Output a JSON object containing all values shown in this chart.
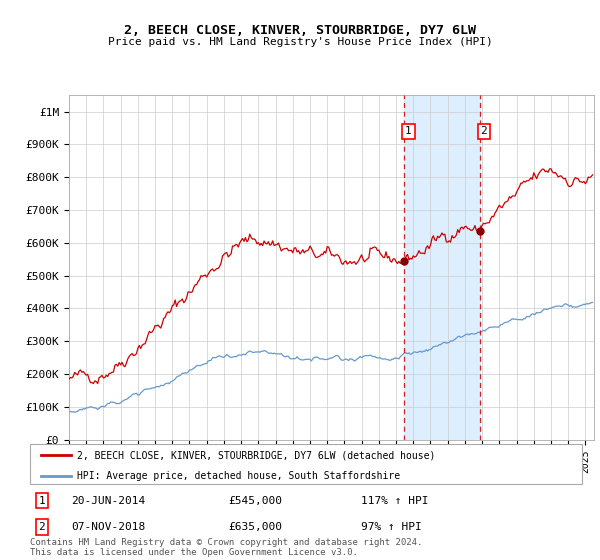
{
  "title": "2, BEECH CLOSE, KINVER, STOURBRIDGE, DY7 6LW",
  "subtitle": "Price paid vs. HM Land Registry's House Price Index (HPI)",
  "ylabel_ticks": [
    "£0",
    "£100K",
    "£200K",
    "£300K",
    "£400K",
    "£500K",
    "£600K",
    "£700K",
    "£800K",
    "£900K",
    "£1M"
  ],
  "ytick_values": [
    0,
    100000,
    200000,
    300000,
    400000,
    500000,
    600000,
    700000,
    800000,
    900000,
    1000000
  ],
  "ylim": [
    0,
    1050000
  ],
  "year_start": 1995,
  "year_end": 2025,
  "transaction1": {
    "date_num": 2014.47,
    "price": 545000,
    "label": "1",
    "date_str": "20-JUN-2014",
    "pct": "117%"
  },
  "transaction2": {
    "date_num": 2018.85,
    "price": 635000,
    "label": "2",
    "date_str": "07-NOV-2018",
    "pct": "97%"
  },
  "legend_red": "2, BEECH CLOSE, KINVER, STOURBRIDGE, DY7 6LW (detached house)",
  "legend_blue": "HPI: Average price, detached house, South Staffordshire",
  "footnote": "Contains HM Land Registry data © Crown copyright and database right 2024.\nThis data is licensed under the Open Government Licence v3.0.",
  "red_color": "#cc0000",
  "blue_color": "#6699cc",
  "shade_color": "#ddeeff",
  "background_color": "#ffffff",
  "grid_color": "#cccccc"
}
